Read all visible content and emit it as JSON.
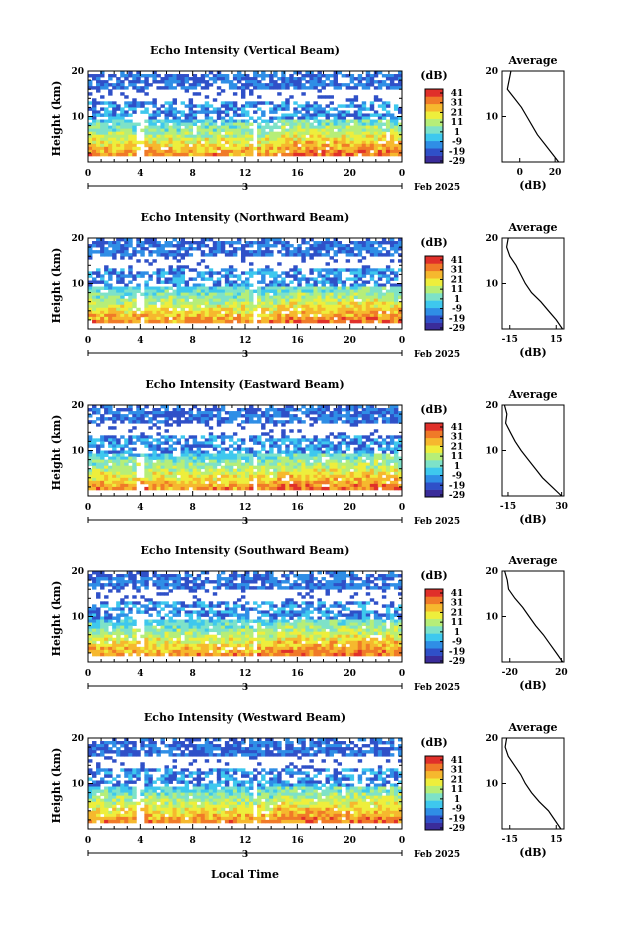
{
  "colors": {
    "scale": [
      "#3a2c9a",
      "#2f50c8",
      "#2f8ee6",
      "#3ec8ee",
      "#7ee2c8",
      "#b6ee78",
      "#eeee3c",
      "#f6b82e",
      "#f07a28",
      "#e0302a"
    ],
    "frame": "#000000",
    "background": "#ffffff"
  },
  "common": {
    "ylabel": "Height (km)",
    "colorbar_unit": "(dB)",
    "colorbar_ticks": [
      "41",
      "31",
      "21",
      "11",
      "1",
      "-9",
      "-19",
      "-29"
    ],
    "time_ticks": [
      "0",
      "4",
      "8",
      "12",
      "16",
      "20",
      "0"
    ],
    "day_label": "3",
    "month_label": "Feb 2025",
    "height_ticks": [
      "20",
      "10"
    ],
    "avg_title": "Average",
    "avg_xlabel": "(dB)",
    "avg_height_ticks": [
      "20",
      "10"
    ],
    "bottom_xlabel": "Local Time"
  },
  "chart_data": [
    {
      "type": "heatmap",
      "title": "Echo Intensity (Vertical Beam)",
      "xlabel": "Local Time",
      "ylabel": "Height (km)",
      "xlim": [
        0,
        24
      ],
      "ylim": [
        0,
        20
      ],
      "zlim": [
        -29,
        41
      ],
      "average": {
        "xticks": [
          "0",
          "20"
        ],
        "xlim": [
          -10,
          25
        ],
        "height": [
          20,
          18,
          16,
          14,
          12,
          10,
          8,
          6,
          4,
          2,
          0
        ],
        "db": [
          -5,
          -6,
          -7,
          -3,
          1,
          4,
          7,
          10,
          14,
          18,
          22
        ]
      }
    },
    {
      "type": "heatmap",
      "title": "Echo Intensity (Northward Beam)",
      "xlabel": "Local Time",
      "ylabel": "Height (km)",
      "xlim": [
        0,
        24
      ],
      "ylim": [
        0,
        20
      ],
      "zlim": [
        -29,
        41
      ],
      "average": {
        "xticks": [
          "-15",
          "15"
        ],
        "xlim": [
          -20,
          20
        ],
        "height": [
          20,
          18,
          16,
          14,
          12,
          10,
          8,
          6,
          4,
          2,
          0
        ],
        "db": [
          -16,
          -17,
          -15,
          -11,
          -8,
          -5,
          -1,
          5,
          10,
          15,
          19
        ]
      }
    },
    {
      "type": "heatmap",
      "title": "Echo Intensity (Eastward Beam)",
      "xlabel": "Local Time",
      "ylabel": "Height (km)",
      "xlim": [
        0,
        24
      ],
      "ylim": [
        0,
        20
      ],
      "zlim": [
        -29,
        41
      ],
      "average": {
        "xticks": [
          "-15",
          "30"
        ],
        "xlim": [
          -20,
          32
        ],
        "height": [
          20,
          18,
          16,
          14,
          12,
          10,
          8,
          6,
          4,
          2,
          0
        ],
        "db": [
          -18,
          -16,
          -17,
          -13,
          -9,
          -4,
          2,
          8,
          14,
          22,
          30
        ]
      }
    },
    {
      "type": "heatmap",
      "title": "Echo Intensity (Southward Beam)",
      "xlabel": "Local Time",
      "ylabel": "Height (km)",
      "xlim": [
        0,
        24
      ],
      "ylim": [
        0,
        20
      ],
      "zlim": [
        -29,
        41
      ],
      "average": {
        "xticks": [
          "-20",
          "20"
        ],
        "xlim": [
          -26,
          22
        ],
        "height": [
          20,
          18,
          16,
          14,
          12,
          10,
          8,
          6,
          4,
          2,
          0
        ],
        "db": [
          -24,
          -22,
          -21,
          -16,
          -10,
          -5,
          0,
          6,
          11,
          16,
          21
        ]
      }
    },
    {
      "type": "heatmap",
      "title": "Echo Intensity (Westward Beam)",
      "xlabel": "Local Time",
      "ylabel": "Height (km)",
      "xlim": [
        0,
        24
      ],
      "ylim": [
        0,
        20
      ],
      "zlim": [
        -29,
        41
      ],
      "average": {
        "xticks": [
          "-15",
          "15"
        ],
        "xlim": [
          -20,
          20
        ],
        "height": [
          20,
          18,
          16,
          14,
          12,
          10,
          8,
          6,
          4,
          2,
          0
        ],
        "db": [
          -17,
          -18,
          -16,
          -12,
          -8,
          -5,
          -1,
          4,
          10,
          14,
          18
        ]
      }
    }
  ]
}
